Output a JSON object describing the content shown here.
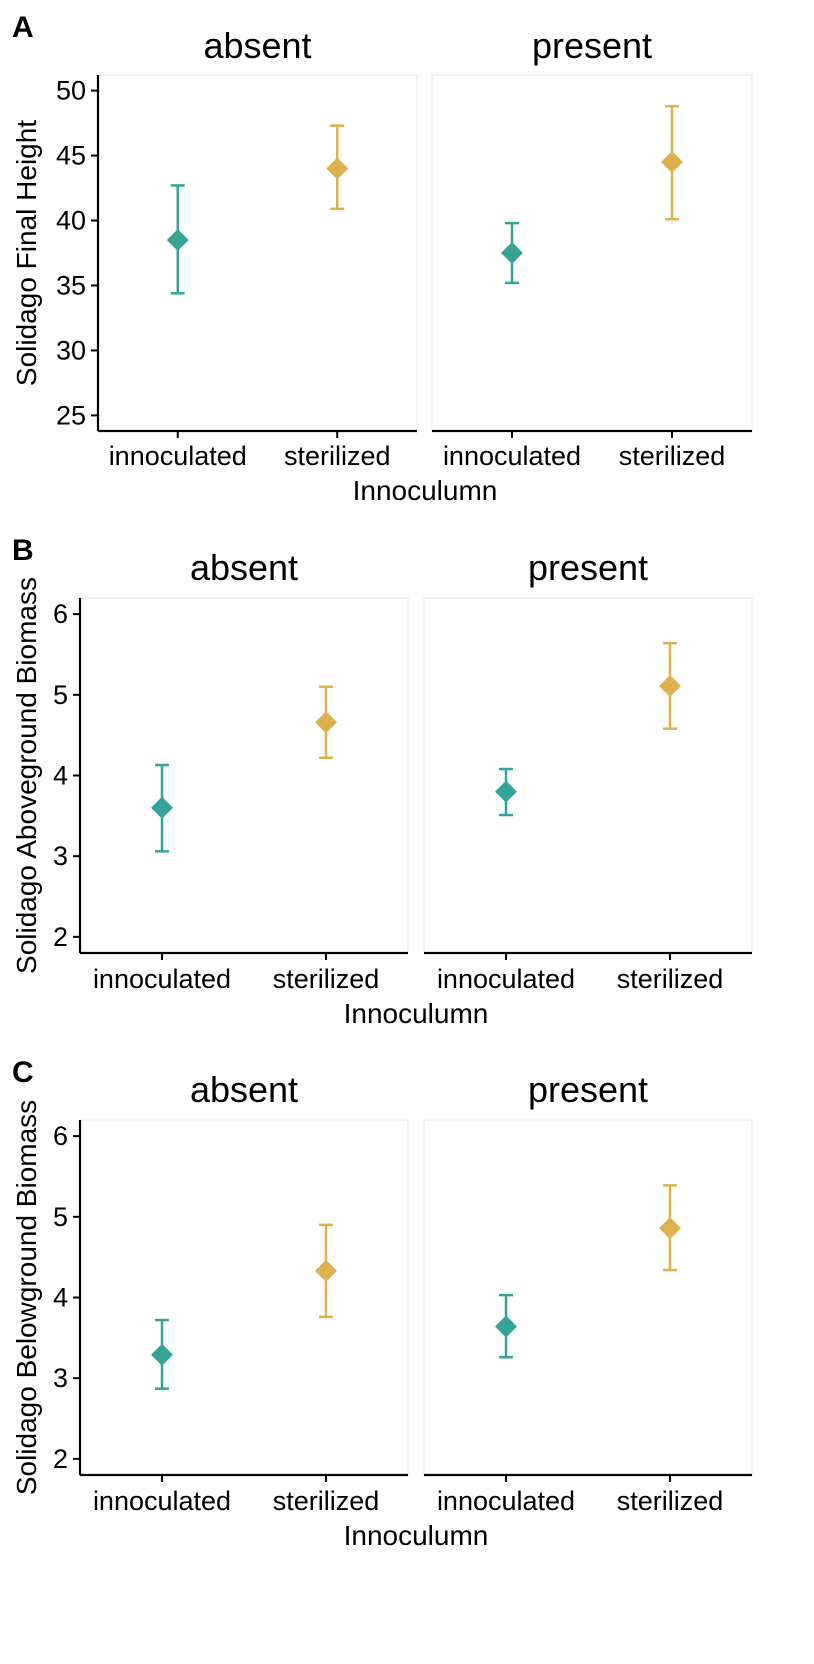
{
  "chart_data": [
    {
      "type": "scatter",
      "panel_label": "A",
      "facets": [
        "absent",
        "present"
      ],
      "categories": [
        "innoculated",
        "sterilized"
      ],
      "xlabel": "Innoculumn",
      "ylabel": "Solidago Final Height",
      "ylim": [
        23.8,
        51.2
      ],
      "yticks": [
        25,
        30,
        35,
        40,
        45,
        50
      ],
      "points": [
        {
          "facet": "absent",
          "x": "innoculated",
          "y": 38.5,
          "ymin": 34.4,
          "ymax": 42.7
        },
        {
          "facet": "absent",
          "x": "sterilized",
          "y": 44.0,
          "ymin": 40.9,
          "ymax": 47.3
        },
        {
          "facet": "present",
          "x": "innoculated",
          "y": 37.5,
          "ymin": 35.2,
          "ymax": 39.8
        },
        {
          "facet": "present",
          "x": "sterilized",
          "y": 44.5,
          "ymin": 40.1,
          "ymax": 48.8
        }
      ],
      "grid": false,
      "legend": "none"
    },
    {
      "type": "scatter",
      "panel_label": "B",
      "facets": [
        "absent",
        "present"
      ],
      "categories": [
        "innoculated",
        "sterilized"
      ],
      "xlabel": "Innoculumn",
      "ylabel": "Solidago Aboveground Biomass",
      "ylim": [
        1.8,
        6.2
      ],
      "yticks": [
        2,
        3,
        4,
        5,
        6
      ],
      "points": [
        {
          "facet": "absent",
          "x": "innoculated",
          "y": 3.6,
          "ymin": 3.06,
          "ymax": 4.13
        },
        {
          "facet": "absent",
          "x": "sterilized",
          "y": 4.66,
          "ymin": 4.22,
          "ymax": 5.1
        },
        {
          "facet": "present",
          "x": "innoculated",
          "y": 3.8,
          "ymin": 3.51,
          "ymax": 4.08
        },
        {
          "facet": "present",
          "x": "sterilized",
          "y": 5.11,
          "ymin": 4.58,
          "ymax": 5.64
        }
      ],
      "grid": false,
      "legend": "none"
    },
    {
      "type": "scatter",
      "panel_label": "C",
      "facets": [
        "absent",
        "present"
      ],
      "categories": [
        "innoculated",
        "sterilized"
      ],
      "xlabel": "Innoculumn",
      "ylabel": "Solidago Belowground Biomass",
      "ylim": [
        1.8,
        6.2
      ],
      "yticks": [
        2,
        3,
        4,
        5,
        6
      ],
      "points": [
        {
          "facet": "absent",
          "x": "innoculated",
          "y": 3.29,
          "ymin": 2.87,
          "ymax": 3.72
        },
        {
          "facet": "absent",
          "x": "sterilized",
          "y": 4.33,
          "ymin": 3.76,
          "ymax": 4.9
        },
        {
          "facet": "present",
          "x": "innoculated",
          "y": 3.64,
          "ymin": 3.26,
          "ymax": 4.03
        },
        {
          "facet": "present",
          "x": "sterilized",
          "y": 4.86,
          "ymin": 4.34,
          "ymax": 5.39
        }
      ],
      "grid": false,
      "legend": "none"
    }
  ],
  "colors": {
    "innoculated": "#35a497",
    "sterilized": "#ddb24e"
  }
}
